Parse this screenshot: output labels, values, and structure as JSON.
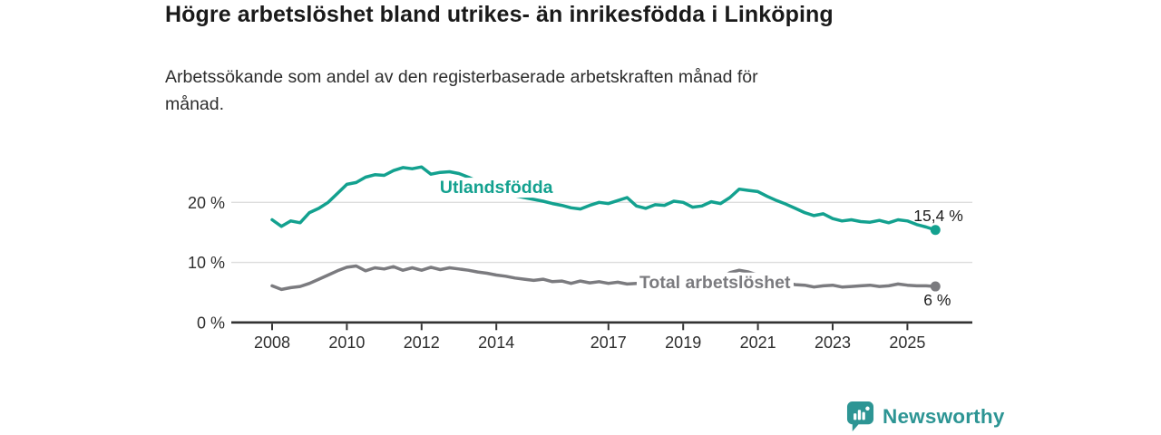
{
  "chart_data": {
    "type": "line",
    "title": "Högre arbetslöshet bland utrikes- än inrikesfödda i Linköping",
    "subtitle_lines": [
      "Arbetssökande som andel av den registerbaserade arbetskraften månad för",
      "månad."
    ],
    "y_unit": "%",
    "x_unit": "decimal year (quarterly resolution)",
    "x_start": 2008,
    "x_step": 0.25,
    "x_domain": [
      2006.9,
      2026.75
    ],
    "y_domain": [
      0,
      28
    ],
    "grid": "horizontal gridlines at 10% and 20%, dark baseline at 0%",
    "legend_position": "inline labels on lines",
    "y_ticks": [
      {
        "value": 0,
        "label": "0 %"
      },
      {
        "value": 10,
        "label": "10 %"
      },
      {
        "value": 20,
        "label": "20 %"
      }
    ],
    "x_ticks": [
      {
        "year": 2008,
        "label": "2008"
      },
      {
        "year": 2010,
        "label": "2010"
      },
      {
        "year": 2012,
        "label": "2012"
      },
      {
        "year": 2014,
        "label": "2014"
      },
      {
        "year": 2017,
        "label": "2017"
      },
      {
        "year": 2019,
        "label": "2019"
      },
      {
        "year": 2021,
        "label": "2021"
      },
      {
        "year": 2023,
        "label": "2023"
      },
      {
        "year": 2025,
        "label": "2025"
      }
    ],
    "series": [
      {
        "name": "Utlandsfödda",
        "inline_label": "Utlandsfödda",
        "color": "#13a18f",
        "end_label": "15,4 %",
        "end_value": 15.4,
        "label_anchor": {
          "year": 2014.0,
          "value": 22.6
        },
        "values": [
          17.1,
          16.0,
          16.9,
          16.6,
          18.3,
          19.0,
          20.0,
          21.5,
          23.0,
          23.3,
          24.2,
          24.6,
          24.5,
          25.3,
          25.8,
          25.6,
          25.9,
          24.7,
          25.0,
          25.1,
          24.8,
          24.2,
          23.5,
          22.8,
          22.3,
          21.6,
          21.1,
          20.8,
          20.5,
          20.2,
          19.8,
          19.5,
          19.1,
          18.9,
          19.5,
          20.0,
          19.8,
          20.3,
          20.8,
          19.4,
          19.0,
          19.6,
          19.5,
          20.2,
          20.0,
          19.2,
          19.4,
          20.1,
          19.8,
          20.8,
          22.2,
          22.0,
          21.8,
          21.0,
          20.3,
          19.7,
          19.0,
          18.3,
          17.8,
          18.1,
          17.3,
          16.9,
          17.1,
          16.8,
          16.7,
          17.0,
          16.6,
          17.1,
          16.9,
          16.3,
          15.9,
          15.4
        ]
      },
      {
        "name": "Total arbetslöshet",
        "inline_label": "Total arbetslöshet",
        "color": "#7b7b7f",
        "end_label": "6 %",
        "end_value": 6.0,
        "label_anchor": {
          "year": 2019.85,
          "value": 6.8
        },
        "values": [
          6.1,
          5.5,
          5.8,
          6.0,
          6.5,
          7.2,
          7.9,
          8.6,
          9.2,
          9.4,
          8.6,
          9.1,
          8.9,
          9.3,
          8.7,
          9.1,
          8.7,
          9.2,
          8.8,
          9.1,
          8.9,
          8.7,
          8.4,
          8.2,
          7.9,
          7.7,
          7.4,
          7.2,
          7.0,
          7.2,
          6.8,
          6.9,
          6.5,
          6.9,
          6.6,
          6.8,
          6.5,
          6.7,
          6.4,
          6.5,
          6.2,
          6.4,
          6.2,
          6.3,
          6.1,
          6.3,
          6.5,
          6.8,
          7.3,
          8.3,
          8.7,
          8.4,
          7.9,
          7.4,
          6.9,
          6.6,
          6.3,
          6.2,
          5.9,
          6.1,
          6.2,
          5.9,
          6.0,
          6.1,
          6.2,
          6.0,
          6.1,
          6.4,
          6.2,
          6.1,
          6.1,
          6.0
        ]
      }
    ],
    "colors": {
      "foreign_born_line": "#13a18f",
      "total_line": "#7b7b7f",
      "gridline": "#dddddd",
      "axis": "#333333",
      "tick_text": "#2e2e2e",
      "end_label_text": "#1c1c1c",
      "brand_teal": "#2d9594"
    }
  },
  "footer": {
    "brand": "Newsworthy"
  }
}
